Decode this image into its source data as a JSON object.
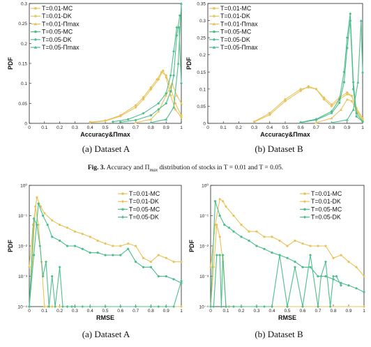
{
  "colors": {
    "yellow": "#e8c35a",
    "green": "#4cbe8c"
  },
  "captions": {
    "a1": "(a)  Dataset A",
    "b1": "(b)  Dataset B",
    "a2": "(a)  Dataset A",
    "b2": "(b)  Dataset B"
  },
  "figure_caption": {
    "prefix": "Fig. 3.",
    "text": "Accuracy and Π",
    "sub": "max",
    "suffix": " distribution of stocks in T = 0.01 and T = 0.05."
  },
  "chart_data": [
    {
      "type": "line",
      "xlabel": "Accuracy&Πmax",
      "ylabel": "PDF",
      "xlim": [
        0,
        1
      ],
      "ylim": [
        0,
        0.3
      ],
      "xticks": [
        "0",
        "0.1",
        "0.2",
        "0.3",
        "0.4",
        "0.5",
        "0.6",
        "0.7",
        "0.8",
        "0.9",
        "1"
      ],
      "yticks": [
        "0",
        "0.05",
        "0.1",
        "0.15",
        "0.2",
        "0.25",
        "0.3"
      ],
      "legend_position": "top-left",
      "series": [
        {
          "name": "T=0.01-MC",
          "color": "yellow",
          "marker": "circle",
          "x": [
            0.4,
            0.5,
            0.6,
            0.7,
            0.75,
            0.8,
            0.84,
            0.87,
            0.9,
            0.93,
            0.96,
            1.0
          ],
          "y": [
            0.003,
            0.007,
            0.02,
            0.045,
            0.065,
            0.09,
            0.11,
            0.128,
            0.12,
            0.09,
            0.05,
            0.02
          ]
        },
        {
          "name": "T=0.01-DK",
          "color": "yellow",
          "marker": "diamond",
          "x": [
            0.4,
            0.5,
            0.6,
            0.7,
            0.75,
            0.8,
            0.85,
            0.88,
            0.9,
            0.93,
            0.96,
            1.0
          ],
          "y": [
            0.002,
            0.006,
            0.018,
            0.04,
            0.06,
            0.085,
            0.11,
            0.132,
            0.115,
            0.07,
            0.035,
            0.015
          ]
        },
        {
          "name": "T=0.01-Πmax",
          "color": "yellow",
          "marker": "triangle",
          "x": [
            0.7,
            0.8,
            0.85,
            0.9,
            0.94,
            0.97,
            1.0
          ],
          "y": [
            0.002,
            0.01,
            0.03,
            0.07,
            0.1,
            0.07,
            0.05
          ]
        },
        {
          "name": "T=0.05-MC",
          "color": "green",
          "marker": "circle",
          "x": [
            0.6,
            0.7,
            0.8,
            0.85,
            0.9,
            0.93,
            0.95,
            0.97,
            0.99
          ],
          "y": [
            0.003,
            0.008,
            0.02,
            0.035,
            0.05,
            0.08,
            0.12,
            0.22,
            0.27
          ]
        },
        {
          "name": "T=0.05-DK",
          "color": "green",
          "marker": "diamond",
          "x": [
            0.55,
            0.65,
            0.75,
            0.85,
            0.9,
            0.93,
            0.95,
            0.97,
            0.985,
            1.0
          ],
          "y": [
            0.004,
            0.01,
            0.025,
            0.05,
            0.075,
            0.12,
            0.18,
            0.24,
            0.24,
            0.1
          ]
        },
        {
          "name": "T=0.05-Πmax",
          "color": "green",
          "marker": "triangle",
          "x": [
            0.8,
            0.9,
            0.95,
            0.98,
            1.0
          ],
          "y": [
            0.002,
            0.01,
            0.04,
            0.15,
            0.3
          ]
        }
      ]
    },
    {
      "type": "line",
      "xlabel": "Accuracy&Πmax",
      "ylabel": "PDF",
      "xlim": [
        0,
        1
      ],
      "ylim": [
        0,
        0.35
      ],
      "xticks": [
        "0",
        "0.1",
        "0.2",
        "0.3",
        "0.4",
        "0.5",
        "0.6",
        "0.7",
        "0.8",
        "0.9",
        "1"
      ],
      "yticks": [
        "0",
        "0.05",
        "0.1",
        "0.15",
        "0.2",
        "0.25",
        "0.3",
        "0.35"
      ],
      "legend_position": "top-left",
      "series": [
        {
          "name": "T=0.01-MC",
          "color": "yellow",
          "marker": "circle",
          "x": [
            0.3,
            0.4,
            0.5,
            0.6,
            0.65,
            0.7,
            0.75,
            0.8,
            0.85,
            0.9,
            0.93,
            0.96,
            1.0
          ],
          "y": [
            0.005,
            0.03,
            0.07,
            0.1,
            0.105,
            0.1,
            0.075,
            0.055,
            0.075,
            0.09,
            0.08,
            0.04,
            0.01
          ]
        },
        {
          "name": "T=0.01-DK",
          "color": "yellow",
          "marker": "diamond",
          "x": [
            0.3,
            0.4,
            0.5,
            0.6,
            0.65,
            0.7,
            0.75,
            0.8,
            0.85,
            0.9,
            0.93,
            0.96,
            1.0
          ],
          "y": [
            0.004,
            0.025,
            0.065,
            0.095,
            0.108,
            0.1,
            0.07,
            0.05,
            0.07,
            0.085,
            0.08,
            0.045,
            0.015
          ]
        },
        {
          "name": "T=0.01-Πmax",
          "color": "yellow",
          "marker": "triangle",
          "x": [
            0.7,
            0.8,
            0.86,
            0.9,
            0.93,
            0.97,
            1.0
          ],
          "y": [
            0.002,
            0.015,
            0.04,
            0.07,
            0.065,
            0.03,
            0.01
          ]
        },
        {
          "name": "T=0.05-MC",
          "color": "green",
          "marker": "circle",
          "x": [
            0.6,
            0.7,
            0.8,
            0.85,
            0.88,
            0.9,
            0.92,
            0.94,
            0.96,
            1.0
          ],
          "y": [
            0.002,
            0.01,
            0.03,
            0.06,
            0.12,
            0.22,
            0.3,
            0.1,
            0.02,
            0.005
          ]
        },
        {
          "name": "T=0.05-DK",
          "color": "green",
          "marker": "diamond",
          "x": [
            0.6,
            0.7,
            0.8,
            0.85,
            0.88,
            0.9,
            0.92,
            0.94,
            0.96,
            1.0
          ],
          "y": [
            0.003,
            0.012,
            0.035,
            0.07,
            0.15,
            0.25,
            0.32,
            0.12,
            0.03,
            0.005
          ]
        },
        {
          "name": "T=0.05-Πmax",
          "color": "green",
          "marker": "triangle",
          "x": [
            0.8,
            0.9,
            0.94,
            0.97,
            0.99,
            1.0
          ],
          "y": [
            0.002,
            0.01,
            0.04,
            0.12,
            0.3,
            0.15
          ]
        }
      ]
    },
    {
      "type": "line",
      "xlabel": "RMSE",
      "ylabel": "PDF",
      "xlim": [
        0,
        1
      ],
      "ylim": [
        0.0001,
        1
      ],
      "yscale": "log",
      "xticks": [
        "0",
        "0.1",
        "0.2",
        "0.3",
        "0.4",
        "0.5",
        "0.6",
        "0.7",
        "0.8",
        "0.9",
        "1"
      ],
      "yticks": [
        "10⁻⁴",
        "10⁻³",
        "10⁻²",
        "10⁻¹",
        "10⁰"
      ],
      "legend_position": "top-right",
      "series": [
        {
          "name": "T=0.01-MC",
          "color": "yellow",
          "marker": "circle",
          "x": [
            0,
            0.025,
            0.05,
            0.075,
            0.1,
            0.15,
            0.2,
            0.25,
            0.3,
            0.35,
            0.4,
            0.45,
            0.5,
            0.55,
            0.6,
            0.65,
            0.7,
            0.75,
            0.8,
            0.85,
            0.9,
            0.95,
            1.0
          ],
          "y": [
            0.002,
            0.05,
            0.4,
            0.2,
            0.12,
            0.07,
            0.05,
            0.04,
            0.03,
            0.025,
            0.02,
            0.015,
            0.012,
            0.01,
            0.01,
            0.012,
            0.01,
            0.004,
            0.003,
            0.005,
            0.004,
            0.003,
            0.003
          ]
        },
        {
          "name": "T=0.01-DK",
          "color": "yellow",
          "marker": "diamond",
          "x": [
            0,
            0.02,
            0.04,
            0.06,
            0.08,
            0.1,
            0.12,
            0.15,
            0.2,
            0.3,
            0.5,
            0.7,
            1.0
          ],
          "y": [
            0.0001,
            0.003,
            0.2,
            0.05,
            0.003,
            0.0001,
            0.0001,
            0.0001,
            0.0001,
            0.0001,
            0.0001,
            0.0001,
            0.0001
          ]
        },
        {
          "name": "T=0.05-MC",
          "color": "green",
          "marker": "circle",
          "x": [
            0,
            0.03,
            0.06,
            0.09,
            0.12,
            0.15,
            0.2,
            0.25,
            0.3,
            0.35,
            0.4,
            0.45,
            0.5,
            0.55,
            0.6,
            0.65,
            0.7,
            0.75,
            0.8,
            0.85,
            0.9,
            0.95,
            1.0
          ],
          "y": [
            0.0001,
            0.005,
            0.25,
            0.1,
            0.05,
            0.02,
            0.015,
            0.01,
            0.01,
            0.008,
            0.006,
            0.006,
            0.005,
            0.005,
            0.005,
            0.008,
            0.003,
            0.002,
            0.002,
            0.001,
            0.001,
            0.0008,
            0.0006
          ]
        },
        {
          "name": "T=0.05-DK",
          "color": "green",
          "marker": "diamond",
          "x": [
            0,
            0.03,
            0.05,
            0.07,
            0.09,
            0.11,
            0.13,
            0.15,
            0.17,
            0.2,
            0.22,
            0.25,
            0.28,
            0.3,
            0.35,
            0.4,
            0.5,
            0.6,
            0.7,
            0.8,
            0.85,
            0.9,
            0.95,
            1.0
          ],
          "y": [
            0.0001,
            0.08,
            0.05,
            0.01,
            0.001,
            0.003,
            0.0001,
            0.001,
            0.0001,
            0.002,
            0.0001,
            0.0001,
            0.0001,
            0.0001,
            0.0001,
            0.0001,
            0.0001,
            0.0001,
            0.0001,
            0.0001,
            0.0001,
            0.0001,
            0.0001,
            0.0007
          ]
        }
      ]
    },
    {
      "type": "line",
      "xlabel": "RMSE",
      "ylabel": "PDF",
      "xlim": [
        0,
        1
      ],
      "ylim": [
        0.0001,
        1
      ],
      "yscale": "log",
      "xticks": [
        "0",
        "0.1",
        "0.2",
        "0.3",
        "0.4",
        "0.5",
        "0.6",
        "0.7",
        "0.8",
        "0.9",
        "1"
      ],
      "yticks": [
        "10⁻⁴",
        "10⁻³",
        "10⁻²",
        "10⁻¹",
        "10⁰"
      ],
      "legend_position": "top-right",
      "series": [
        {
          "name": "T=0.01-MC",
          "color": "yellow",
          "marker": "circle",
          "x": [
            0,
            0.03,
            0.06,
            0.08,
            0.1,
            0.15,
            0.2,
            0.25,
            0.3,
            0.35,
            0.4,
            0.45,
            0.5,
            0.55,
            0.6,
            0.65,
            0.7,
            0.75,
            0.8,
            0.85,
            0.9,
            0.95,
            1.0
          ],
          "y": [
            0.002,
            0.05,
            0.35,
            0.3,
            0.2,
            0.1,
            0.05,
            0.03,
            0.03,
            0.02,
            0.02,
            0.015,
            0.01,
            0.015,
            0.012,
            0.01,
            0.01,
            0.01,
            0.004,
            0.005,
            0.003,
            0.002,
            0.001
          ]
        },
        {
          "name": "T=0.01-DK",
          "color": "yellow",
          "marker": "diamond",
          "x": [
            0,
            0.02,
            0.04,
            0.06,
            0.08,
            0.1,
            0.12,
            0.15,
            0.2,
            0.3,
            0.5,
            0.7,
            1.0
          ],
          "y": [
            0.0001,
            0.002,
            0.05,
            0.02,
            0.003,
            0.0001,
            0.0001,
            0.0001,
            0.0001,
            0.0001,
            0.0001,
            0.0001,
            0.0001
          ]
        },
        {
          "name": "T=0.05-MC",
          "color": "green",
          "marker": "circle",
          "x": [
            0,
            0.03,
            0.06,
            0.09,
            0.12,
            0.15,
            0.2,
            0.25,
            0.3,
            0.35,
            0.4,
            0.45,
            0.5,
            0.55,
            0.6,
            0.65,
            0.7,
            0.75,
            0.8,
            0.85,
            0.9,
            0.95,
            1.0
          ],
          "y": [
            0.0001,
            0.3,
            0.1,
            0.05,
            0.04,
            0.03,
            0.02,
            0.015,
            0.01,
            0.008,
            0.006,
            0.005,
            0.004,
            0.003,
            0.002,
            0.002,
            0.001,
            0.001,
            0.0008,
            0.0006,
            0.0005,
            0.0004,
            0.0003
          ]
        },
        {
          "name": "T=0.05-DK",
          "color": "green",
          "marker": "diamond",
          "x": [
            0.02,
            0.04,
            0.06,
            0.07,
            0.08,
            0.1,
            0.15,
            0.2,
            0.3,
            0.35,
            0.4,
            0.45,
            0.5,
            0.55,
            0.6,
            0.65,
            0.7,
            0.72,
            0.75,
            0.78,
            0.8,
            0.82,
            0.85
          ],
          "y": [
            0.0001,
            0.005,
            0.005,
            0.0001,
            0.005,
            0.0001,
            0.0001,
            0.0001,
            0.0001,
            0.0001,
            0.0001,
            0.005,
            0.0001,
            0.002,
            0.0001,
            0.005,
            0.0001,
            0.001,
            0.003,
            0.0001,
            0.001,
            0.001,
            0.0005
          ]
        }
      ]
    }
  ]
}
